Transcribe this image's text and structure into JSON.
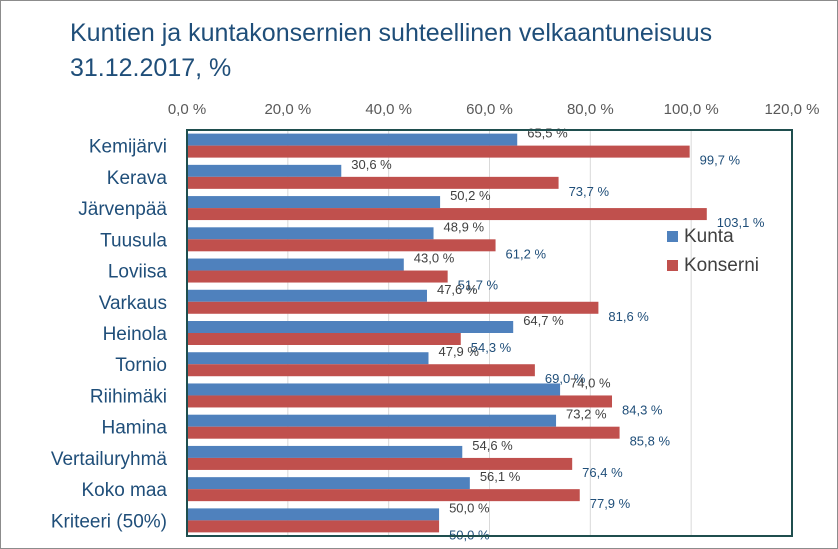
{
  "chart_data": {
    "type": "bar",
    "orientation": "horizontal",
    "title_line1": "Kuntien ja kuntakonsernien suhteellinen velkaantuneisuus",
    "title_line2": "31.12.2017, %",
    "categories": [
      "Kemijärvi",
      "Kerava",
      "Järvenpää",
      "Tuusula",
      "Loviisa",
      "Varkaus",
      "Heinola",
      "Tornio",
      "Riihimäki",
      "Hamina",
      "Vertailuryhmä",
      "Koko maa",
      "Kriteeri (50%)"
    ],
    "series": [
      {
        "name": "Kunta",
        "color": "#4f81bd",
        "values": [
          65.5,
          30.6,
          50.2,
          48.9,
          43.0,
          47.6,
          64.7,
          47.9,
          74.0,
          73.2,
          54.6,
          56.1,
          50.0
        ],
        "labels": [
          "65,5 %",
          "30,6 %",
          "50,2 %",
          "48,9 %",
          "43,0 %",
          "47,6 %",
          "64,7 %",
          "47,9 %",
          "74,0 %",
          "73,2 %",
          "54,6 %",
          "56,1 %",
          "50,0 %"
        ]
      },
      {
        "name": "Konserni",
        "color": "#c0504d",
        "values": [
          99.7,
          73.7,
          103.1,
          61.2,
          51.7,
          81.6,
          54.3,
          69.0,
          84.3,
          85.8,
          76.4,
          77.9,
          50.0
        ],
        "labels": [
          "99,7 %",
          "73,7 %",
          "103,1 %",
          "61,2 %",
          "51,7 %",
          "81,6 %",
          "54,3 %",
          "69,0 %",
          "84,3 %",
          "85,8 %",
          "76,4 %",
          "77,9 %",
          "50,0 %"
        ]
      }
    ],
    "xlim": [
      0,
      120
    ],
    "ticks": [
      0,
      20,
      40,
      60,
      80,
      100,
      120
    ],
    "tick_labels": [
      "0,0 %",
      "20,0 %",
      "40,0 %",
      "60,0 %",
      "80,0 %",
      "100,0 %",
      "120,0 %"
    ],
    "grid": true,
    "axis_position": "top",
    "legend_position": "right",
    "colors": {
      "title": "#1f4e79",
      "category_text": "#1f4e79",
      "tick_text": "#595959",
      "grid": "#d9d9d9",
      "plot_border": "#1f4e4e",
      "kunta_label": "#404040",
      "konserni_label": "#1f4e79",
      "legend_text": "#404040"
    }
  }
}
